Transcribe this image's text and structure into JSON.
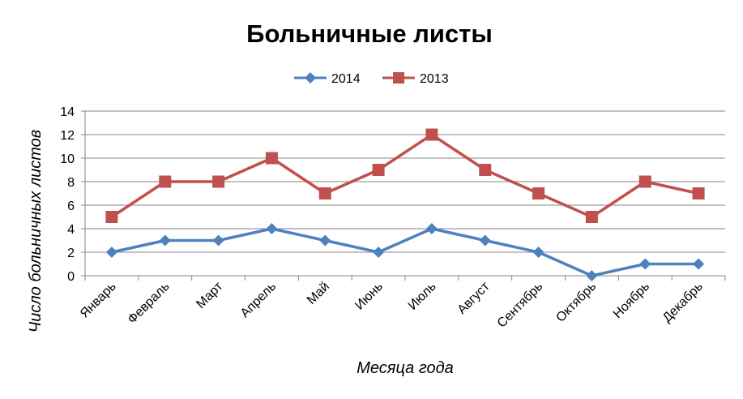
{
  "chart_data": {
    "type": "line",
    "title": "Больничные листы",
    "xlabel": "Месяца года",
    "ylabel": "Число больничных листов",
    "categories": [
      "Январь",
      "Февраль",
      "Март",
      "Апрель",
      "Май",
      "Июнь",
      "Июль",
      "Август",
      "Сентябрь",
      "Октябрь",
      "Ноябрь",
      "Декабрь"
    ],
    "series": [
      {
        "name": "2014",
        "values": [
          2,
          3,
          3,
          4,
          3,
          2,
          4,
          3,
          2,
          0,
          1,
          1
        ],
        "color": "#4F81BD",
        "marker": "diamond"
      },
      {
        "name": "2013",
        "values": [
          5,
          8,
          8,
          10,
          7,
          9,
          12,
          9,
          7,
          5,
          8,
          7
        ],
        "color": "#C0504D",
        "marker": "square"
      }
    ],
    "ylim": [
      0,
      14
    ],
    "yticks": [
      "0",
      "2",
      "4",
      "6",
      "8",
      "10",
      "12",
      "14"
    ],
    "grid": true,
    "legend_position": "top"
  }
}
